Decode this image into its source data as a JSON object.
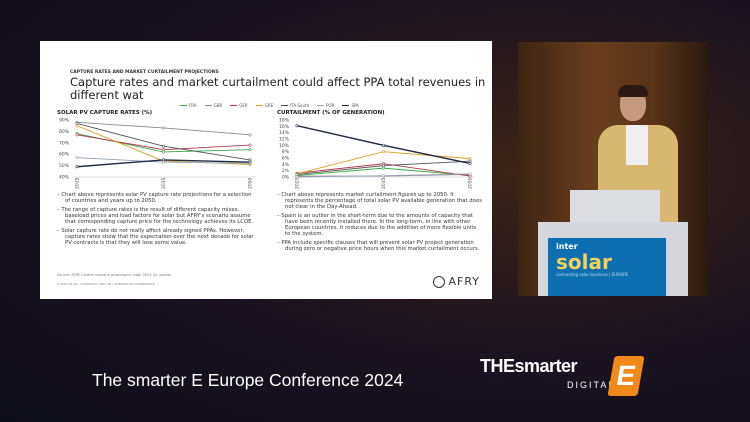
{
  "slide": {
    "kicker": "CAPTURE RATES AND MARKET CURTAILMENT PROJECTIONS",
    "title": "Capture rates and market curtailment could affect PPA total revenues in different wat",
    "left_bullets": [
      "– Chart above represents solar PV capture rate projections for a selection of countries and years up to 2050.",
      "– The range of capture rates is the result of different capacity mixes, baseload prices and load factors for solar but AFRY's scenario assume that corresponding capture price for the technology achieves its LCOE.",
      "– Solar capture rate do not really affect already signed PPAs. However, capture rates show that the expectation over the next decade for solar PV contracts is that they will lose some value."
    ],
    "right_bullets": [
      "– Chart above represents market curtailment figures up to 2050. It represents the percentage of total solar PV available generation that does not clear in the Day-Ahead.",
      "– Spain is an outlier in the short-term due to the amounts of capacity that have been recently installed there. In the long-term, in line with other European countries, it reduces due to the addition of more flexible units to the system.",
      "– PPA include specific clauses that will prevent solar PV project generation during zero or negative price hours when this market curtailment occurs."
    ],
    "source": "Source: AFRY Central scenario projections under 2024 Q1 update",
    "footer": "8   2024-06-20 | COPYRIGHT AFRY AB | INTERSOLAR CONFERENCE",
    "logo": "AFRY"
  },
  "legend": [
    {
      "name": "FRA",
      "color": "#3aa843"
    },
    {
      "name": "GBR",
      "color": "#8a8a8a"
    },
    {
      "name": "GER",
      "color": "#b3364a"
    },
    {
      "name": "GRE",
      "color": "#d9a02a"
    },
    {
      "name": "ITA-South",
      "color": "#555555"
    },
    {
      "name": "POR",
      "color": "#9aa7b8"
    },
    {
      "name": "SPA",
      "color": "#1f2a44"
    }
  ],
  "chart_data": [
    {
      "type": "line",
      "title": "SOLAR PV CAPTURE RATES (%)",
      "categories": [
        "2025",
        "2035",
        "2050"
      ],
      "ylim": [
        40,
        90
      ],
      "yticks": [
        "40%",
        "50%",
        "60%",
        "70%",
        "80%",
        "90%"
      ],
      "series": [
        {
          "name": "FRA",
          "values": [
            78,
            62,
            64
          ]
        },
        {
          "name": "GBR",
          "values": [
            88,
            83,
            77
          ]
        },
        {
          "name": "GER",
          "values": [
            77,
            64,
            68
          ]
        },
        {
          "name": "GRE",
          "values": [
            85,
            54,
            51
          ]
        },
        {
          "name": "ITA-South",
          "values": [
            87,
            67,
            55
          ]
        },
        {
          "name": "POR",
          "values": [
            57,
            53,
            52
          ]
        },
        {
          "name": "SPA",
          "values": [
            49,
            55,
            53
          ]
        }
      ]
    },
    {
      "type": "line",
      "title": "CURTAILMENT (% OF GENERATION)",
      "categories": [
        "2025",
        "2035",
        "2050"
      ],
      "ylim": [
        0,
        18
      ],
      "yticks": [
        "0%",
        "2%",
        "4%",
        "6%",
        "8%",
        "10%",
        "12%",
        "14%",
        "16%",
        "18%"
      ],
      "series": [
        {
          "name": "FRA",
          "values": [
            0.5,
            2.8,
            0.5
          ]
        },
        {
          "name": "GBR",
          "values": [
            0.3,
            0.3,
            0.8
          ]
        },
        {
          "name": "GER",
          "values": [
            1.2,
            4.2,
            0.3
          ]
        },
        {
          "name": "GRE",
          "values": [
            1,
            8,
            5.8
          ]
        },
        {
          "name": "ITA-South",
          "values": [
            0.8,
            3.6,
            5
          ]
        },
        {
          "name": "POR",
          "values": [
            0,
            0.4,
            1
          ]
        },
        {
          "name": "SPA",
          "values": [
            16.2,
            10,
            4.3
          ]
        }
      ]
    }
  ],
  "podium": {
    "line1": "inter",
    "line2": "solar",
    "line3": "connecting solar business | EUROPE"
  },
  "banner": {
    "text": "The smarter E Europe Conference 2024",
    "logo_main": "THEsmarter",
    "logo_sub": "DIGITAL",
    "logo_e": "E"
  }
}
